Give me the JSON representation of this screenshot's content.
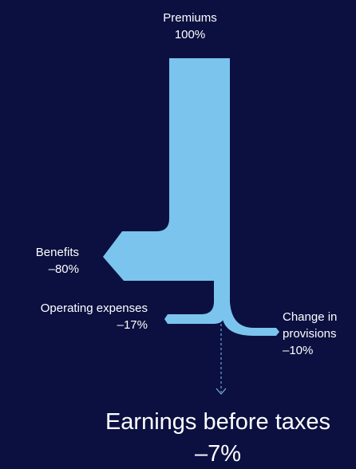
{
  "colors": {
    "background": "#0b1040",
    "flow": "#7bc4ed",
    "arrow": "#7bc4ed",
    "text": "#ffffff"
  },
  "labels": {
    "premiums": {
      "name": "Premiums",
      "value": "100%"
    },
    "benefits": {
      "name": "Benefits",
      "value": "–80%"
    },
    "operating_expenses": {
      "name": "Operating expenses",
      "value": "–17%"
    },
    "change_in_provisions": {
      "name_line1": "Change in",
      "name_line2": "provisions",
      "value": "–10%"
    },
    "earnings_before_taxes": {
      "name": "Earnings before taxes",
      "value": "–7%"
    }
  }
}
